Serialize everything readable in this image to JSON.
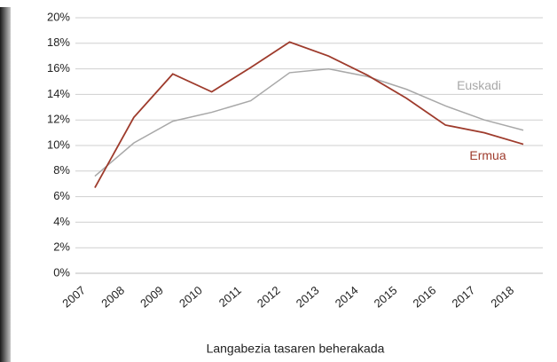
{
  "chart_data": {
    "type": "line",
    "title": "Langabezia tasaren beherakada",
    "categories": [
      "2007",
      "2008",
      "2009",
      "2010",
      "2011",
      "2012",
      "2013",
      "2014",
      "2015",
      "2016",
      "2017",
      "2018"
    ],
    "series": [
      {
        "name": "Euskadi",
        "color": "#a8a8a8",
        "values": [
          7.6,
          10.2,
          11.9,
          12.6,
          13.5,
          15.7,
          16.0,
          15.4,
          14.4,
          13.1,
          12.0,
          11.2
        ]
      },
      {
        "name": "Ermua",
        "color": "#9e3b2c",
        "values": [
          6.7,
          12.2,
          15.6,
          14.2,
          16.1,
          18.1,
          17.0,
          15.5,
          13.7,
          11.6,
          11.0,
          10.1
        ]
      }
    ],
    "ylim": [
      0,
      20
    ],
    "yticks": [
      {
        "value": 0,
        "label": "0%"
      },
      {
        "value": 2,
        "label": "2%"
      },
      {
        "value": 4,
        "label": "4%"
      },
      {
        "value": 6,
        "label": "6%"
      },
      {
        "value": 8,
        "label": "8%"
      },
      {
        "value": 10,
        "label": "10%"
      },
      {
        "value": 12,
        "label": "12%"
      },
      {
        "value": 14,
        "label": "14%"
      },
      {
        "value": 16,
        "label": "16%"
      },
      {
        "value": 18,
        "label": "18%"
      },
      {
        "value": 20,
        "label": "20%"
      }
    ],
    "grid": true
  }
}
